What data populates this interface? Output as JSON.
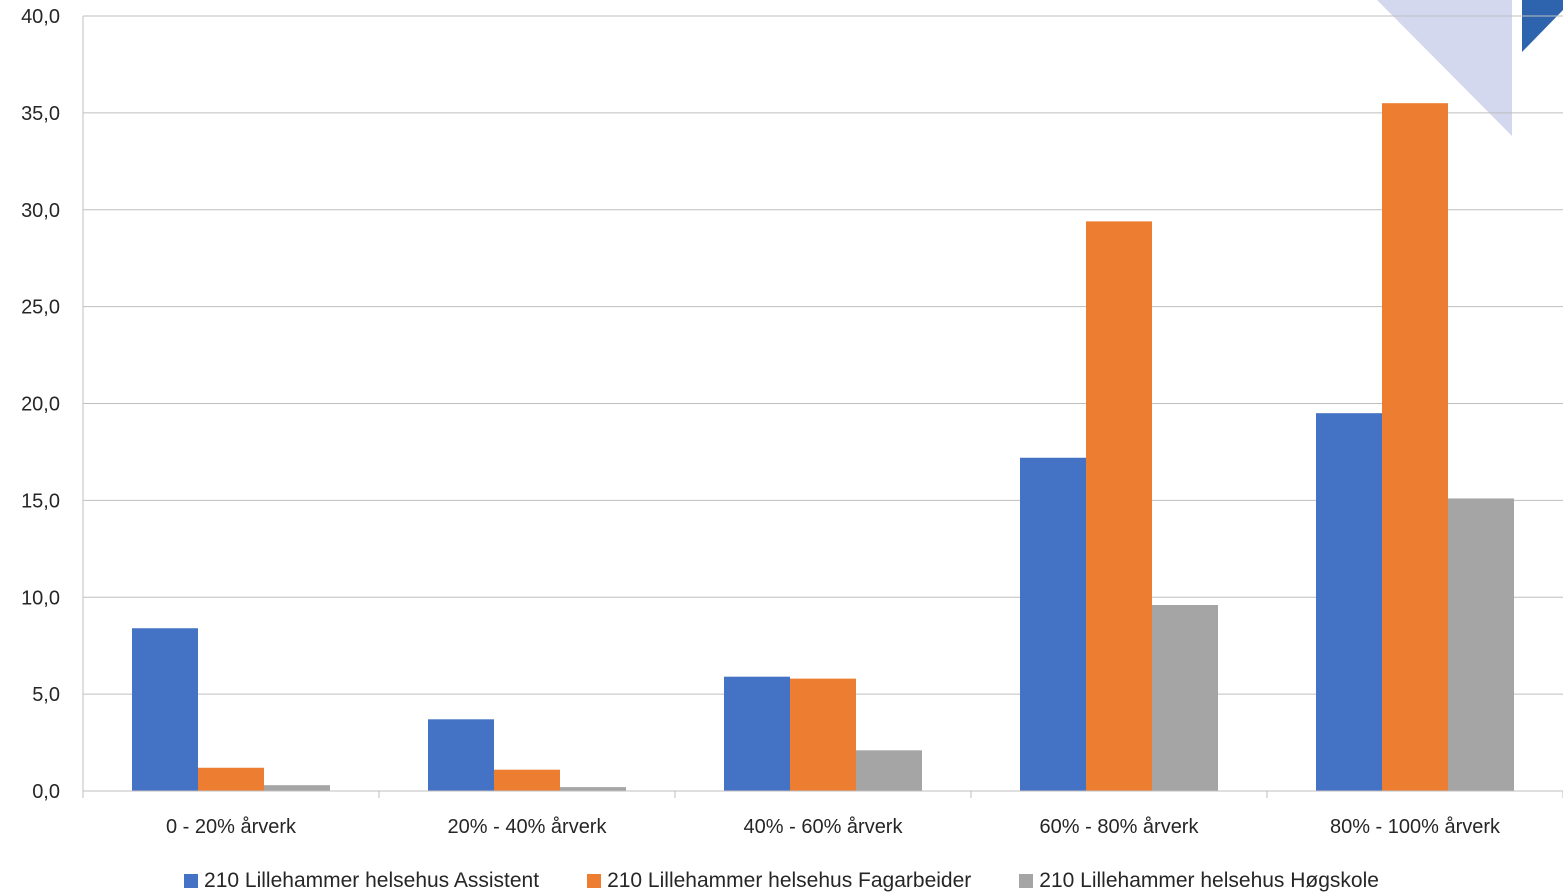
{
  "chart_data": {
    "type": "bar",
    "categories": [
      "0 - 20% årverk",
      "20% - 40% årverk",
      "40% - 60% årverk",
      "60% - 80% årverk",
      "80% - 100% årverk"
    ],
    "series": [
      {
        "name": "210 Lillehammer helsehus Assistent",
        "color": "#4472C4",
        "values": [
          8.4,
          3.7,
          5.9,
          17.2,
          19.5
        ]
      },
      {
        "name": "210 Lillehammer helsehus Fagarbeider",
        "color": "#ED7D31",
        "values": [
          1.2,
          1.1,
          5.8,
          29.4,
          35.5
        ]
      },
      {
        "name": "210 Lillehammer helsehus Høgskole",
        "color": "#A5A5A5",
        "values": [
          0.3,
          0.2,
          2.1,
          9.6,
          15.1
        ]
      }
    ],
    "y_ticks": [
      "0,0",
      "5,0",
      "10,0",
      "15,0",
      "20,0",
      "25,0",
      "30,0",
      "35,0",
      "40,0"
    ],
    "ylim": [
      0,
      40
    ],
    "title": "",
    "xlabel": "",
    "ylabel": "",
    "grid": true,
    "legend_position": "bottom"
  },
  "decoration": {
    "corner_triangle_color": "#D3D8EE",
    "corner_tab_color": "#2E64AE"
  }
}
